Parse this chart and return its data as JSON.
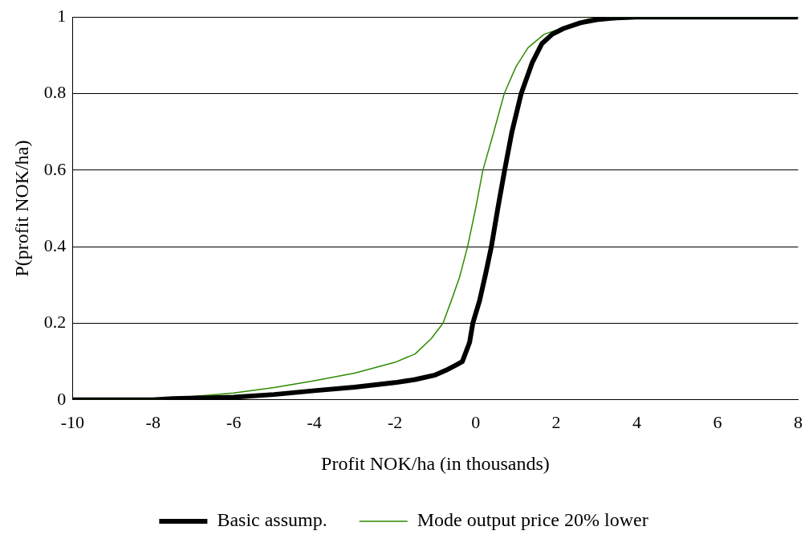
{
  "chart_data": {
    "type": "line",
    "xlabel": "Profit NOK/ha (in thousands)",
    "ylabel": "P(profit NOK/ha)",
    "xlim": [
      -10,
      8
    ],
    "ylim": [
      0,
      1
    ],
    "xticks": [
      -10,
      -8,
      -6,
      -4,
      -2,
      0,
      2,
      4,
      6,
      8
    ],
    "yticks": [
      0,
      0.2,
      0.4,
      0.6,
      0.8,
      1
    ],
    "grid": "y",
    "legend": "bottom",
    "marker": "none",
    "series": [
      {
        "name": "Basic assump.",
        "color": "#000000",
        "x": [
          -10,
          -8,
          -7.5,
          -6,
          -5,
          -4,
          -3,
          -2,
          -1.5,
          -1,
          -0.74,
          -0.5,
          -0.33,
          -0.15,
          -0.07,
          0.1,
          0.25,
          0.39,
          0.55,
          0.72,
          0.9,
          1.13,
          1.4,
          1.64,
          1.9,
          2.18,
          2.6,
          3,
          3.5,
          4,
          8
        ],
        "values": [
          0,
          0,
          0.003,
          0.007,
          0.014,
          0.024,
          0.033,
          0.045,
          0.053,
          0.065,
          0.077,
          0.09,
          0.1,
          0.15,
          0.2,
          0.26,
          0.33,
          0.4,
          0.5,
          0.6,
          0.7,
          0.8,
          0.88,
          0.93,
          0.955,
          0.97,
          0.985,
          0.993,
          0.998,
          1,
          1
        ]
      },
      {
        "name": "Mode output price 20% lower",
        "color": "#2e8b00",
        "x": [
          -10,
          -8,
          -6,
          -5,
          -4,
          -3,
          -2,
          -1.5,
          -1.1,
          -0.81,
          -0.6,
          -0.4,
          -0.2,
          0,
          0.18,
          0.45,
          0.71,
          1,
          1.3,
          1.7,
          2.12,
          2.5,
          2.8,
          3.5,
          8
        ],
        "values": [
          0,
          0,
          0.018,
          0.032,
          0.05,
          0.07,
          0.098,
          0.12,
          0.16,
          0.2,
          0.26,
          0.32,
          0.4,
          0.5,
          0.6,
          0.7,
          0.8,
          0.87,
          0.92,
          0.955,
          0.97,
          0.985,
          0.995,
          1,
          1
        ]
      }
    ]
  }
}
